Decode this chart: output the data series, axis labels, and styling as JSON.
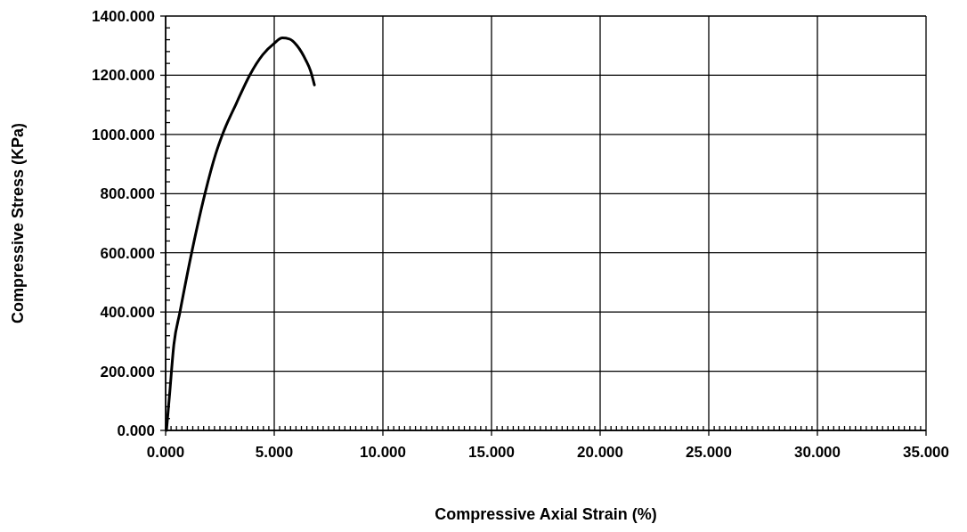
{
  "chart_data": {
    "type": "line",
    "xlabel": "Compressive Axial Strain  (%)",
    "ylabel": "Compressive Stress (KPa)",
    "x": [
      0.04,
      0.18,
      0.38,
      0.66,
      1.2,
      1.82,
      2.3,
      2.64,
      3.25,
      3.87,
      4.48,
      5.0,
      5.37,
      5.71,
      6.05,
      6.46,
      6.67,
      6.85
    ],
    "series": [
      {
        "color": "#000000",
        "values": [
          0,
          119,
          290,
          400,
          601,
          803,
          933,
          1004,
          1104,
          1200,
          1270,
          1308,
          1326,
          1322,
          1300,
          1250,
          1215,
          1167
        ]
      }
    ],
    "xlim": [
      0,
      35
    ],
    "xticks": [
      {
        "value": 0,
        "label": "0.000"
      },
      {
        "value": 5,
        "label": "5.000"
      },
      {
        "value": 10,
        "label": "10.000"
      },
      {
        "value": 15,
        "label": "15.000"
      },
      {
        "value": 20,
        "label": "20.000"
      },
      {
        "value": 25,
        "label": "25.000"
      },
      {
        "value": 30,
        "label": "30.000"
      },
      {
        "value": 35,
        "label": "35.000"
      }
    ],
    "ylim": [
      0,
      1400
    ],
    "yticks": [
      {
        "value": 0,
        "label": "0.000"
      },
      {
        "value": 200,
        "label": "200.000"
      },
      {
        "value": 400,
        "label": "400.000"
      },
      {
        "value": 600,
        "label": "600.000"
      },
      {
        "value": 800,
        "label": "800.000"
      },
      {
        "value": 1000,
        "label": "1000.000"
      },
      {
        "value": 1200,
        "label": "1200.000"
      },
      {
        "value": 1400,
        "label": "1400.000"
      }
    ],
    "grid": true,
    "marker": "none",
    "line_style": "solid"
  }
}
